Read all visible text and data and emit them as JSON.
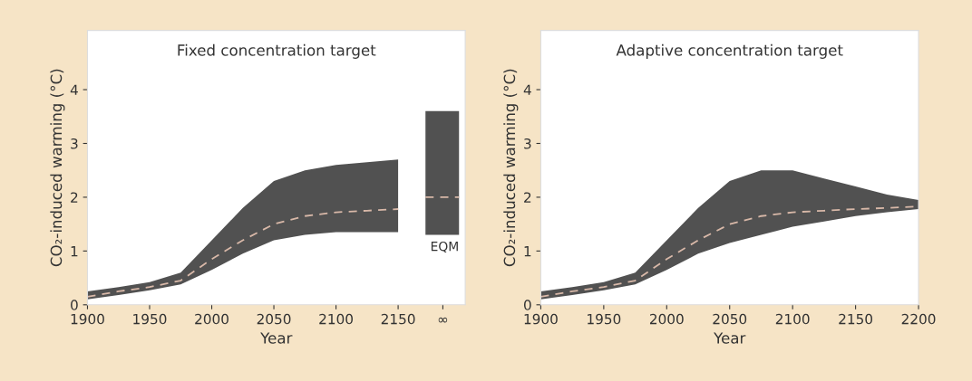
{
  "chart_data": [
    {
      "type": "line",
      "title": "Fixed concentration target",
      "xlabel": "Year",
      "ylabel": "CO₂-induced warming (°C)",
      "xlim": [
        1900,
        2204
      ],
      "xticks": [
        1900,
        1950,
        2000,
        2050,
        2100,
        2150,
        {
          "value": 2186,
          "label": "∞"
        }
      ],
      "ylim": [
        0,
        5.1
      ],
      "yticks": [
        0,
        1,
        2,
        3,
        4
      ],
      "grid": false,
      "legend": false,
      "line_style": "dashed",
      "series": [
        {
          "color": "#d8b8a8",
          "x": [
            1900,
            1925,
            1950,
            1975,
            2000,
            2025,
            2050,
            2075,
            2100,
            2125,
            2150
          ],
          "values": [
            0.15,
            0.25,
            0.33,
            0.45,
            0.85,
            1.2,
            1.5,
            1.65,
            1.72,
            1.75,
            1.78
          ],
          "lower": [
            0.1,
            0.18,
            0.27,
            0.38,
            0.65,
            0.95,
            1.2,
            1.3,
            1.35,
            1.35,
            1.35
          ],
          "upper": [
            0.25,
            0.33,
            0.42,
            0.6,
            1.2,
            1.8,
            2.3,
            2.5,
            2.6,
            2.65,
            2.7
          ]
        },
        {
          "name": "EQM",
          "color": "#d8b8a8",
          "x": [
            2172,
            2199
          ],
          "values": [
            2,
            2
          ],
          "lower": [
            1.3,
            1.3
          ],
          "upper": [
            3.6,
            3.6
          ]
        }
      ]
    },
    {
      "type": "line",
      "title": "Adaptive concentration target",
      "xlabel": "Year",
      "ylabel": "CO₂-induced warming (°C)",
      "xlim": [
        1900,
        2200
      ],
      "xticks": [
        1900,
        1950,
        2000,
        2050,
        2100,
        2150,
        2200
      ],
      "ylim": [
        0,
        5.1
      ],
      "yticks": [
        0,
        1,
        2,
        3,
        4
      ],
      "grid": false,
      "legend": false,
      "line_style": "dashed",
      "series": [
        {
          "color": "#d8b8a8",
          "x": [
            1900,
            1925,
            1950,
            1975,
            2000,
            2025,
            2050,
            2075,
            2100,
            2125,
            2150,
            2175,
            2200
          ],
          "values": [
            0.15,
            0.25,
            0.33,
            0.45,
            0.85,
            1.2,
            1.5,
            1.65,
            1.72,
            1.75,
            1.78,
            1.8,
            1.83
          ],
          "lower": [
            0.1,
            0.18,
            0.27,
            0.38,
            0.65,
            0.95,
            1.15,
            1.3,
            1.45,
            1.55,
            1.65,
            1.72,
            1.78
          ],
          "upper": [
            0.25,
            0.33,
            0.42,
            0.6,
            1.2,
            1.8,
            2.3,
            2.5,
            2.5,
            2.35,
            2.2,
            2.05,
            1.95
          ]
        }
      ]
    }
  ]
}
